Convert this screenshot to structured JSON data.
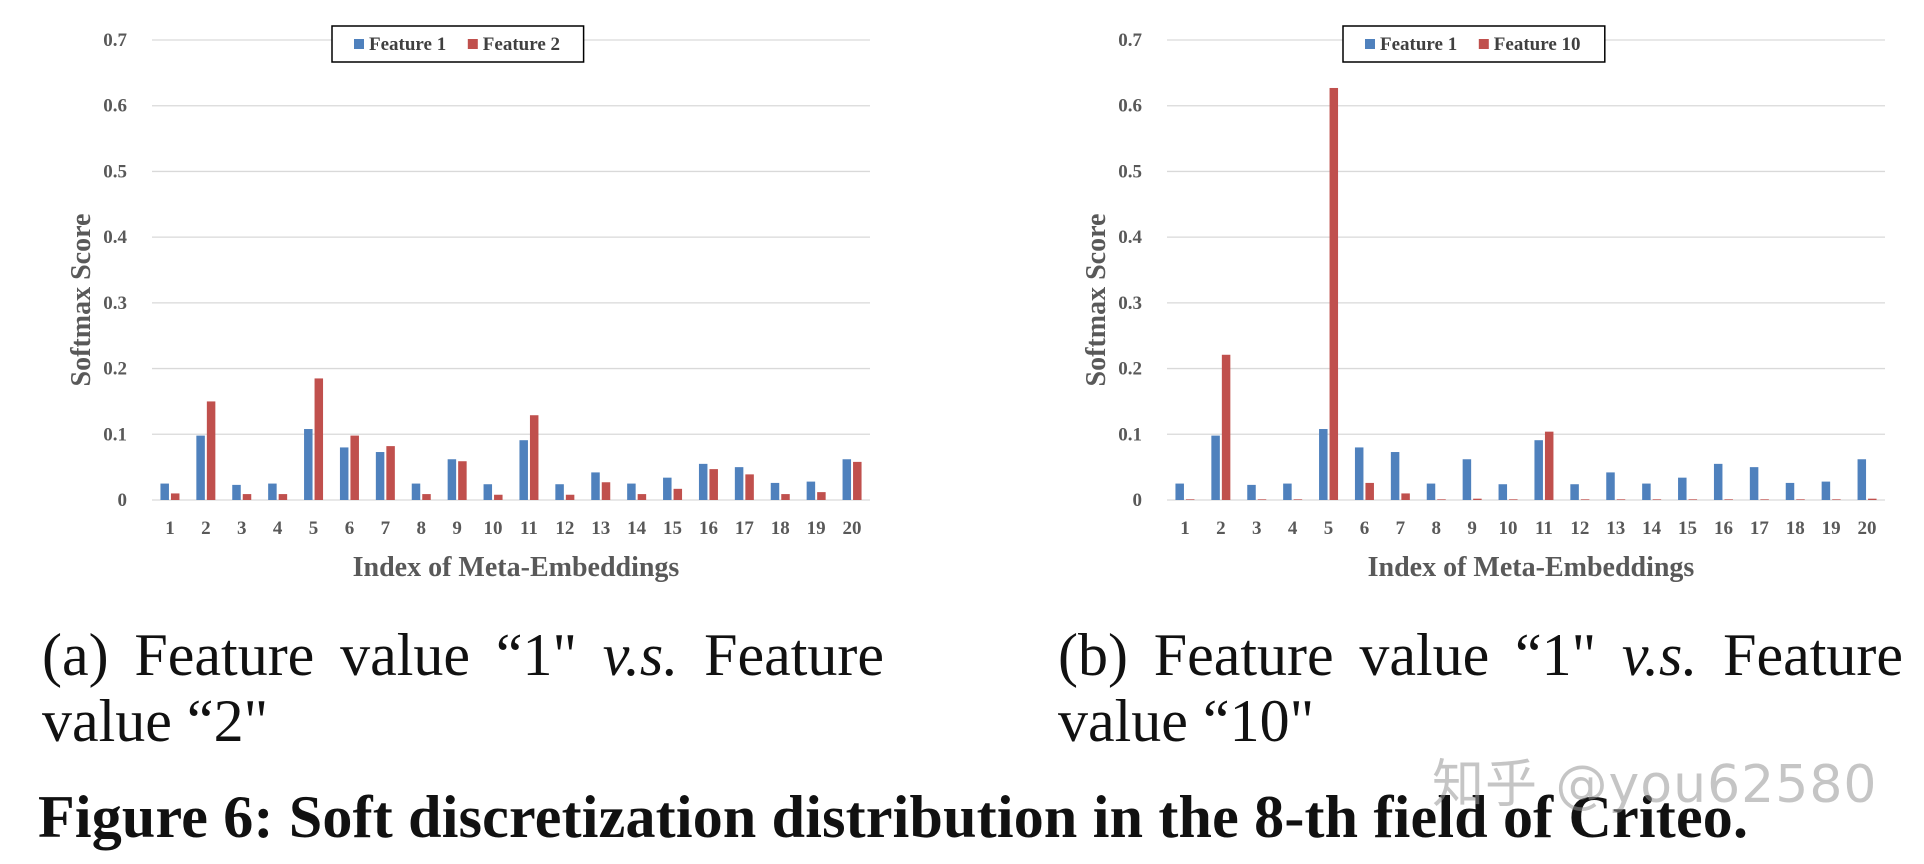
{
  "chart_data": [
    {
      "type": "bar",
      "title": "",
      "xlabel": "Index of Meta-Embeddings",
      "ylabel": "Softmax Score",
      "ylim": [
        0,
        0.7
      ],
      "yticks": [
        0,
        0.1,
        0.2,
        0.3,
        0.4,
        0.5,
        0.6,
        0.7
      ],
      "ytick_labels": [
        "0",
        "0.1",
        "0.2",
        "0.3",
        "0.4",
        "0.5",
        "0.6",
        "0.7"
      ],
      "grid": true,
      "legend_position": "top-center",
      "categories": [
        "1",
        "2",
        "3",
        "4",
        "5",
        "6",
        "7",
        "8",
        "9",
        "10",
        "11",
        "12",
        "13",
        "14",
        "15",
        "16",
        "17",
        "18",
        "19",
        "20"
      ],
      "series": [
        {
          "name": "Feature 1",
          "color": "#4f81bd",
          "values": [
            0.025,
            0.098,
            0.023,
            0.025,
            0.108,
            0.08,
            0.073,
            0.025,
            0.062,
            0.024,
            0.091,
            0.024,
            0.042,
            0.025,
            0.034,
            0.055,
            0.05,
            0.026,
            0.028,
            0.062
          ]
        },
        {
          "name": "Feature 2",
          "color": "#c0504d",
          "values": [
            0.01,
            0.15,
            0.009,
            0.009,
            0.185,
            0.098,
            0.082,
            0.009,
            0.059,
            0.008,
            0.129,
            0.008,
            0.027,
            0.009,
            0.017,
            0.047,
            0.039,
            0.009,
            0.012,
            0.058
          ]
        }
      ]
    },
    {
      "type": "bar",
      "title": "",
      "xlabel": "Index of Meta-Embeddings",
      "ylabel": "Softmax Score",
      "ylim": [
        0,
        0.7
      ],
      "yticks": [
        0,
        0.1,
        0.2,
        0.3,
        0.4,
        0.5,
        0.6,
        0.7
      ],
      "ytick_labels": [
        "0",
        "0.1",
        "0.2",
        "0.3",
        "0.4",
        "0.5",
        "0.6",
        "0.7"
      ],
      "grid": true,
      "legend_position": "top-center",
      "categories": [
        "1",
        "2",
        "3",
        "4",
        "5",
        "6",
        "7",
        "8",
        "9",
        "10",
        "11",
        "12",
        "13",
        "14",
        "15",
        "16",
        "17",
        "18",
        "19",
        "20"
      ],
      "series": [
        {
          "name": "Feature 1",
          "color": "#4f81bd",
          "values": [
            0.025,
            0.098,
            0.023,
            0.025,
            0.108,
            0.08,
            0.073,
            0.025,
            0.062,
            0.024,
            0.091,
            0.024,
            0.042,
            0.025,
            0.034,
            0.055,
            0.05,
            0.026,
            0.028,
            0.062
          ]
        },
        {
          "name": "Feature 10",
          "color": "#c0504d",
          "values": [
            0.001,
            0.221,
            0.001,
            0.001,
            0.627,
            0.026,
            0.01,
            0.001,
            0.002,
            0.001,
            0.104,
            0.001,
            0.001,
            0.001,
            0.001,
            0.001,
            0.001,
            0.001,
            0.001,
            0.002
          ]
        }
      ]
    }
  ],
  "captions": {
    "a": {
      "label": "(a)",
      "text_pre": "Feature value “1\"",
      "vs": "v.s.",
      "text_post": "Feature value “2\""
    },
    "b": {
      "label": "(b)",
      "text_pre": "Feature value “1\"",
      "vs": "v.s.",
      "text_post": "Feature value “10\""
    }
  },
  "figure_title": "Figure 6: Soft discretization distribution in the 8-th field of Criteo.",
  "watermark": "知乎 @you62580"
}
